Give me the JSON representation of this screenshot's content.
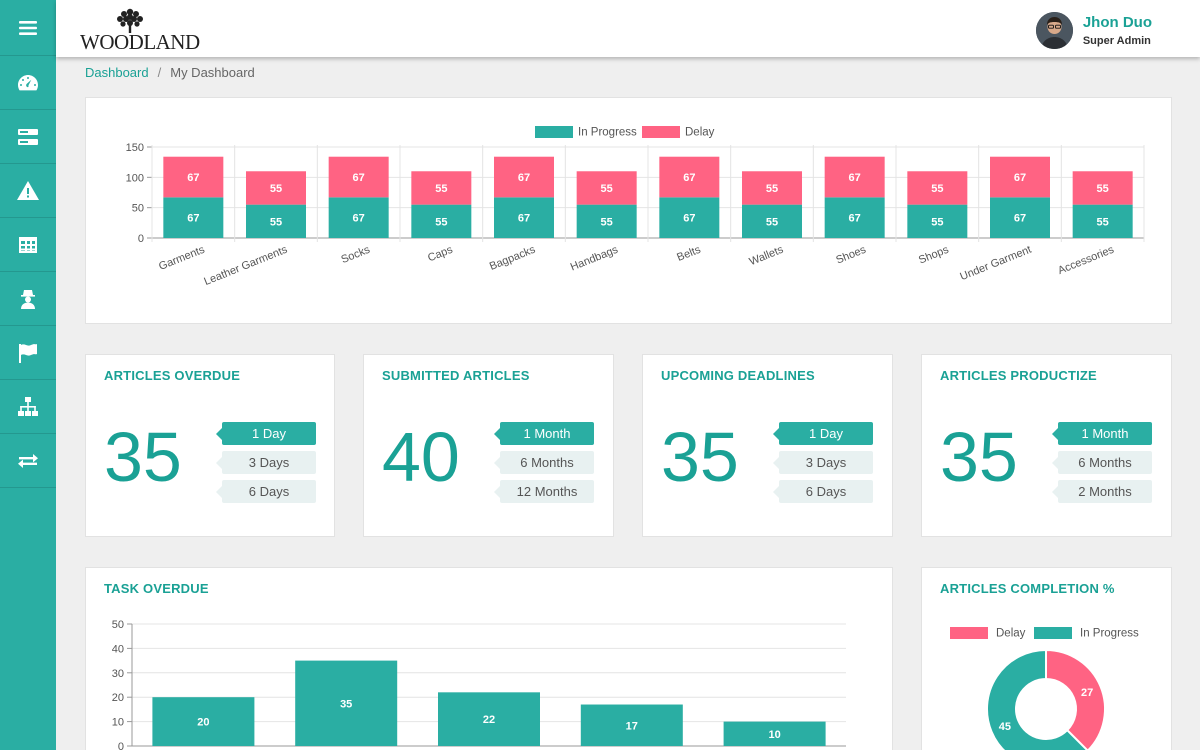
{
  "header": {
    "logo_text": "WOODLAND",
    "user_name": "Jhon Duo",
    "user_role": "Super Admin"
  },
  "sidebar": {
    "items": [
      {
        "icon": "menu-icon"
      },
      {
        "icon": "dashboard-gauge-icon"
      },
      {
        "icon": "server-icon"
      },
      {
        "icon": "warning-icon"
      },
      {
        "icon": "table-icon"
      },
      {
        "icon": "user-secret-icon"
      },
      {
        "icon": "flag-icon"
      },
      {
        "icon": "sitemap-icon"
      },
      {
        "icon": "exchange-icon"
      }
    ]
  },
  "breadcrumb": {
    "root": "Dashboard",
    "separator": "/",
    "current": "My Dashboard"
  },
  "colors": {
    "accent": "#2aaea3",
    "delay": "#ff6383",
    "title": "#1aa195"
  },
  "stats": [
    {
      "title": "ARTICLES OVERDUE",
      "value": "35",
      "options": [
        "1 Day",
        "3 Days",
        "6 Days"
      ],
      "active": 0
    },
    {
      "title": "SUBMITTED ARTICLES",
      "value": "40",
      "options": [
        "1 Month",
        "6 Months",
        "12 Months"
      ],
      "active": 0
    },
    {
      "title": "UPCOMING DEADLINES",
      "value": "35",
      "options": [
        "1 Day",
        "3 Days",
        "6 Days"
      ],
      "active": 0
    },
    {
      "title": "ARTICLES PRODUCTIZE",
      "value": "35",
      "options": [
        "1 Month",
        "6 Months",
        "2 Months"
      ],
      "active": 0
    }
  ],
  "chart_data": [
    {
      "type": "bar",
      "stacked": true,
      "categories": [
        "Garments",
        "Leather Garments",
        "Socks",
        "Caps",
        "Bagpacks",
        "Handbags",
        "Belts",
        "Wallets",
        "Shoes",
        "Shops",
        "Under Garment",
        "Accessories"
      ],
      "series": [
        {
          "name": "In Progress",
          "color": "#2aaea3",
          "values": [
            67,
            55,
            67,
            55,
            67,
            55,
            67,
            55,
            67,
            55,
            67,
            55
          ]
        },
        {
          "name": "Delay",
          "color": "#ff6383",
          "values": [
            67,
            55,
            67,
            55,
            67,
            55,
            67,
            55,
            67,
            55,
            67,
            55
          ]
        }
      ],
      "yticks": [
        0,
        50,
        100,
        150
      ],
      "ylim": [
        0,
        150
      ],
      "legend": "top",
      "grid": true
    },
    {
      "type": "bar",
      "title": "TASK OVERDUE",
      "values": [
        20,
        35,
        22,
        17,
        10
      ],
      "yticks": [
        0,
        10,
        20,
        30,
        40,
        50
      ],
      "ylim": [
        0,
        50
      ],
      "grid": true
    },
    {
      "type": "pie",
      "donut": true,
      "title": "ARTICLES COMPLETION %",
      "legend": "top",
      "slices": [
        {
          "label": "Delay",
          "value": 27,
          "color": "#ff6383"
        },
        {
          "label": "In Progress",
          "value": 45,
          "color": "#2aaea3"
        }
      ]
    }
  ]
}
